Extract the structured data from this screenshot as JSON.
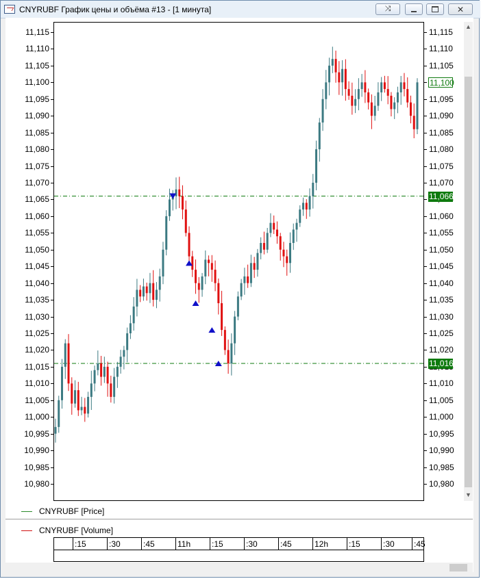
{
  "window": {
    "title": "CNYRUBF График цены и объёма #13 - [1 минута]",
    "buttons": [
      "restore-special",
      "minimize",
      "maximize",
      "close"
    ]
  },
  "colors": {
    "up": "#3c7a82",
    "down": "#e01010",
    "level_line": "#0e7a0e",
    "marker": "#1010c8",
    "current_price": "#0e7a0e"
  },
  "axis": {
    "y_labels": [
      "11,115",
      "11,110",
      "11,105",
      "11,100",
      "11,095",
      "11,090",
      "11,085",
      "11,080",
      "11,075",
      "11,070",
      "11,065",
      "11,060",
      "11,055",
      "11,050",
      "11,045",
      "11,040",
      "11,035",
      "11,030",
      "11,025",
      "11,020",
      "11,015",
      "11,010",
      "11,005",
      "11,000",
      "10,995",
      "10,990",
      "10,985",
      "10,980"
    ],
    "time_labels": [
      ":15",
      ":30",
      ":45",
      "11h",
      ":15",
      ":30",
      ":45",
      "12h",
      ":15",
      ":30",
      ":45"
    ]
  },
  "price_tags": {
    "current": "11,100",
    "level_high": "11,066",
    "level_low": "11,016"
  },
  "legend": {
    "price": "CNYRUBF [Price]",
    "volume": "CNYRUBF [Volume]"
  },
  "chart_data": {
    "type": "candlestick",
    "symbol": "CNYRUBF",
    "interval": "1 минута",
    "ylim": [
      10.978,
      11.117
    ],
    "horizontal_levels": [
      11.066,
      11.016
    ],
    "last_price": 11.1,
    "x_ticks": [
      ":15",
      ":30",
      ":45",
      "11h",
      ":15",
      ":30",
      ":45",
      "12h",
      ":15",
      ":30",
      ":45"
    ],
    "closes": [
      10.997,
      11.005,
      11.015,
      11.022,
      11.01,
      11.004,
      11.008,
      11.002,
      11.003,
      11.001,
      11.006,
      11.01,
      11.014,
      11.016,
      11.012,
      11.015,
      11.01,
      11.006,
      11.012,
      11.015,
      11.018,
      11.02,
      11.025,
      11.028,
      11.033,
      11.038,
      11.036,
      11.039,
      11.037,
      11.04,
      11.035,
      11.038,
      11.042,
      11.05,
      11.06,
      11.065,
      11.066,
      11.068,
      11.066,
      11.062,
      11.055,
      11.048,
      11.044,
      11.04,
      11.038,
      11.042,
      11.047,
      11.046,
      11.044,
      11.04,
      11.034,
      11.026,
      11.02,
      11.016,
      11.022,
      11.03,
      11.036,
      11.04,
      11.042,
      11.04,
      11.046,
      11.044,
      11.049,
      11.052,
      11.05,
      11.055,
      11.058,
      11.056,
      11.054,
      11.05,
      11.048,
      11.046,
      11.052,
      11.056,
      11.058,
      11.062,
      11.064,
      11.062,
      11.066,
      11.07,
      11.08,
      11.088,
      11.095,
      11.1,
      11.105,
      11.107,
      11.103,
      11.1,
      11.104,
      11.098,
      11.096,
      11.093,
      11.095,
      11.098,
      11.1,
      11.097,
      11.094,
      11.09,
      11.093,
      11.097,
      11.1,
      11.098,
      11.096,
      11.092,
      11.094,
      11.097,
      11.1,
      11.098,
      11.094,
      11.09,
      11.086,
      11.1
    ],
    "markers": [
      {
        "type": "sell",
        "price": 11.066
      },
      {
        "type": "buy",
        "price": 11.046
      },
      {
        "type": "buy",
        "price": 11.034
      },
      {
        "type": "buy",
        "price": 11.026
      },
      {
        "type": "buy",
        "price": 11.016
      }
    ]
  }
}
